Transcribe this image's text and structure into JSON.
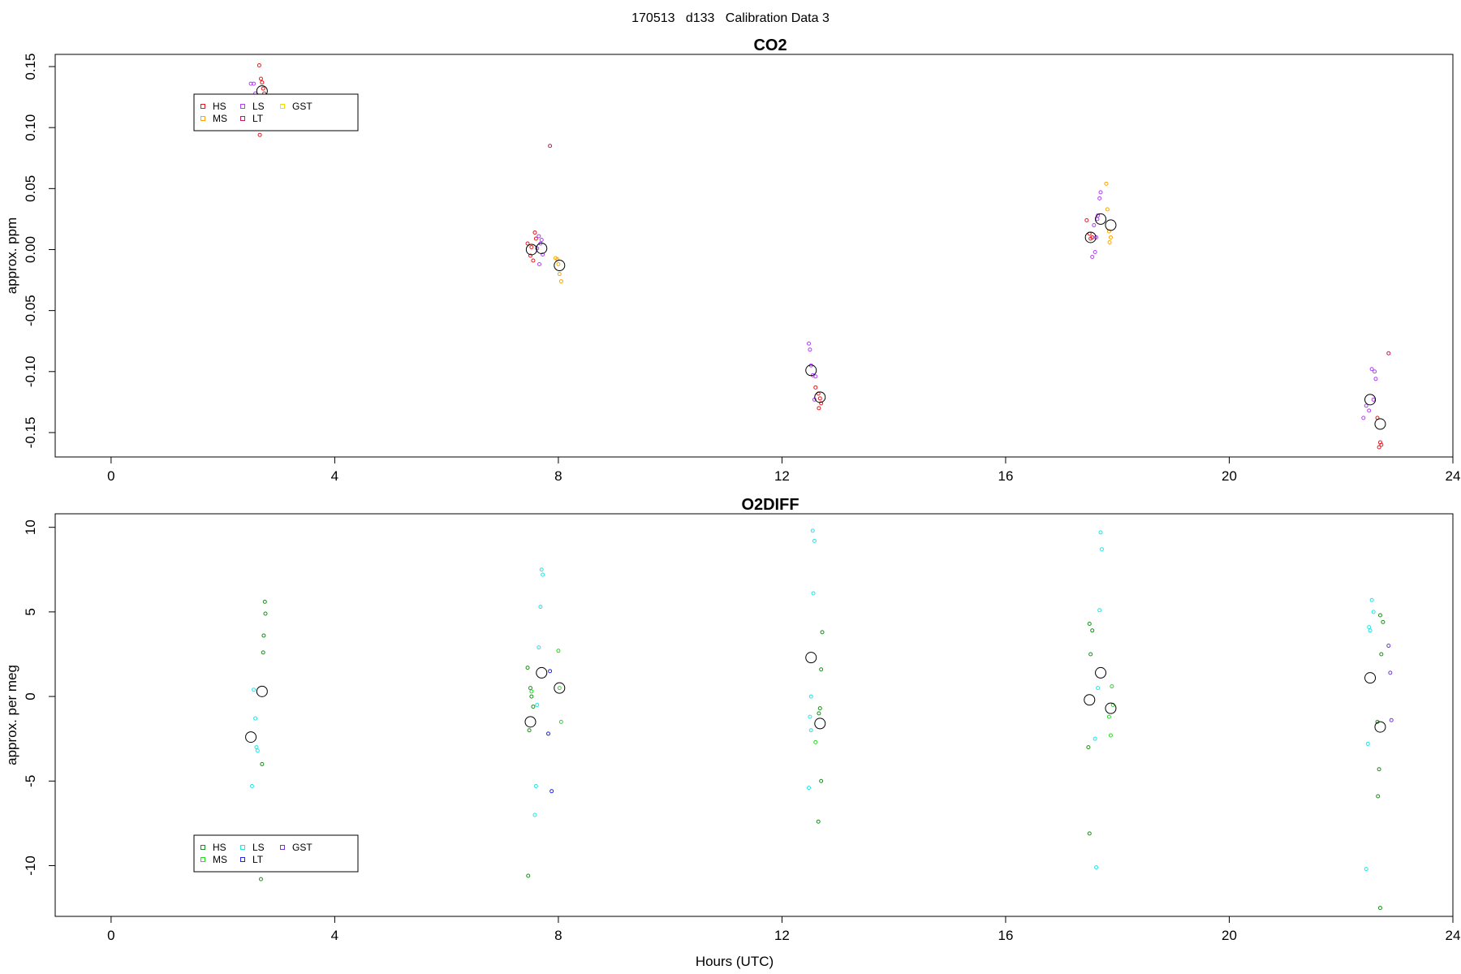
{
  "figure": {
    "title": "170513   d133   Calibration Data 3",
    "xlabel": "Hours (UTC)"
  },
  "chart_data": [
    {
      "type": "scatter",
      "title": "CO2",
      "xlabel": "",
      "ylabel": "approx. ppm",
      "xlim": [
        -1,
        24
      ],
      "ylim": [
        -0.17,
        0.16
      ],
      "xticks": [
        0,
        4,
        8,
        12,
        16,
        20,
        24
      ],
      "yticks": [
        -0.15,
        -0.1,
        -0.05,
        0.0,
        0.05,
        0.1,
        0.15
      ],
      "ytick_labels": [
        "-0.15",
        "-0.10",
        "-0.05",
        "0.00",
        "0.05",
        "0.10",
        "0.15"
      ],
      "grid": false,
      "legend": {
        "position": "top-left",
        "columns": [
          [
            "HS",
            "MS"
          ],
          [
            "LS",
            "LT"
          ],
          [
            "GST"
          ]
        ],
        "colors": {
          "HS": "#e41a1c",
          "MS": "#ffa500",
          "LS": "#b23cff",
          "LT": "#c2185b",
          "GST": "#f0e000"
        }
      },
      "series": [
        {
          "name": "HS",
          "color": "#e41a1c",
          "x": [
            2.65,
            2.68,
            2.7,
            2.72,
            2.74,
            2.7,
            2.66,
            7.45,
            7.5,
            7.55,
            7.58,
            7.6,
            7.52,
            12.6,
            12.65,
            12.68,
            12.7,
            12.66,
            17.45,
            17.5,
            17.55,
            17.52,
            22.65,
            22.7,
            22.72,
            22.68
          ],
          "y": [
            0.151,
            0.14,
            0.137,
            0.132,
            0.128,
            0.12,
            0.094,
            0.005,
            -0.005,
            -0.009,
            0.014,
            0.009,
            0.002,
            -0.113,
            -0.118,
            -0.122,
            -0.126,
            -0.13,
            0.024,
            0.013,
            0.01,
            0.009,
            -0.138,
            -0.158,
            -0.16,
            -0.162
          ]
        },
        {
          "name": "MS",
          "color": "#ffa500",
          "x": [
            7.95,
            7.98,
            8.0,
            8.02,
            8.05,
            17.8,
            17.82,
            17.85,
            17.88,
            17.86
          ],
          "y": [
            -0.007,
            -0.008,
            -0.012,
            -0.02,
            -0.026,
            0.054,
            0.033,
            0.015,
            0.01,
            0.006
          ]
        },
        {
          "name": "LS",
          "color": "#b23cff",
          "x": [
            2.5,
            2.55,
            2.58,
            7.65,
            7.68,
            7.7,
            7.72,
            7.66,
            7.62,
            12.48,
            12.5,
            12.52,
            12.55,
            12.6,
            12.58,
            17.55,
            17.6,
            17.62,
            17.65,
            17.68,
            17.7,
            17.64,
            17.58,
            22.4,
            22.45,
            22.5,
            22.55,
            22.6,
            22.62,
            22.58
          ],
          "y": [
            0.136,
            0.136,
            0.128,
            0.011,
            0.005,
            0.008,
            -0.004,
            -0.012,
            0.001,
            -0.077,
            -0.082,
            -0.095,
            -0.103,
            -0.104,
            -0.123,
            -0.006,
            -0.002,
            0.01,
            0.028,
            0.042,
            0.047,
            0.025,
            0.02,
            -0.138,
            -0.128,
            -0.132,
            -0.098,
            -0.1,
            -0.106,
            -0.123
          ]
        },
        {
          "name": "LT",
          "color": "#c2185b",
          "x": [
            7.85,
            22.85
          ],
          "y": [
            0.085,
            -0.085
          ]
        },
        {
          "name": "GST",
          "color": "#f0e000",
          "x": [],
          "y": []
        }
      ],
      "means": {
        "x": [
          2.7,
          7.52,
          7.7,
          8.02,
          12.52,
          12.68,
          17.52,
          17.7,
          17.88,
          22.52,
          22.7
        ],
        "y": [
          0.13,
          0.0,
          0.001,
          -0.013,
          -0.099,
          -0.121,
          0.01,
          0.025,
          0.02,
          -0.123,
          -0.143
        ]
      }
    },
    {
      "type": "scatter",
      "title": "O2DIFF",
      "xlabel": "Hours (UTC)",
      "ylabel": "approx. per meg",
      "xlim": [
        -1,
        24
      ],
      "ylim": [
        -13,
        10.8
      ],
      "xticks": [
        0,
        4,
        8,
        12,
        16,
        20,
        24
      ],
      "yticks": [
        -10,
        -5,
        0,
        5,
        10
      ],
      "ytick_labels": [
        "-10",
        "-5",
        "0",
        "5",
        "10"
      ],
      "grid": false,
      "legend": {
        "position": "bottom-left",
        "columns": [
          [
            "HS",
            "MS"
          ],
          [
            "LS",
            "LT"
          ],
          [
            "GST"
          ]
        ],
        "colors": {
          "HS": "#1a8f1a",
          "MS": "#22dd22",
          "LS": "#22e6e6",
          "LT": "#2222ee",
          "GST": "#6a3cc8"
        }
      },
      "series": [
        {
          "name": "HS",
          "color": "#1a8f1a",
          "x": [
            2.75,
            2.76,
            2.73,
            2.72,
            2.7,
            2.68,
            7.45,
            7.5,
            7.52,
            7.55,
            7.48,
            7.46,
            12.72,
            12.7,
            12.68,
            12.66,
            12.7,
            12.65,
            17.5,
            17.55,
            17.52,
            17.48,
            17.5,
            22.7,
            22.75,
            22.72,
            22.68,
            22.66,
            22.7,
            22.65
          ],
          "y": [
            5.6,
            4.9,
            3.6,
            2.6,
            -4.0,
            -10.8,
            1.7,
            0.5,
            0.0,
            -0.6,
            -2.0,
            -10.6,
            3.8,
            1.6,
            -0.7,
            -1.0,
            -5.0,
            -7.4,
            4.3,
            3.9,
            2.5,
            -3.0,
            -8.1,
            4.8,
            4.4,
            2.5,
            -4.3,
            -5.9,
            -12.5,
            -1.5
          ]
        },
        {
          "name": "MS",
          "color": "#22dd22",
          "x": [
            7.52,
            8.0,
            8.02,
            8.05,
            12.6,
            17.9,
            17.92,
            17.88,
            17.85
          ],
          "y": [
            0.3,
            2.7,
            0.5,
            -1.5,
            -2.7,
            0.6,
            -0.5,
            -2.3,
            -1.2
          ]
        },
        {
          "name": "LS",
          "color": "#22e6e6",
          "x": [
            2.55,
            2.58,
            2.6,
            2.62,
            2.52,
            7.7,
            7.72,
            7.68,
            7.65,
            7.62,
            7.6,
            7.58,
            12.55,
            12.58,
            12.56,
            12.52,
            12.5,
            12.48,
            12.52,
            17.7,
            17.72,
            17.68,
            17.65,
            17.6,
            17.62,
            22.55,
            22.58,
            22.5,
            22.52,
            22.48,
            22.45
          ],
          "y": [
            0.4,
            -1.3,
            -3.0,
            -3.2,
            -5.3,
            7.5,
            7.2,
            5.3,
            2.9,
            -0.5,
            -5.3,
            -7.0,
            9.8,
            9.2,
            6.1,
            0.0,
            -1.2,
            -5.4,
            -2.0,
            9.7,
            8.7,
            5.1,
            0.5,
            -2.5,
            -10.1,
            5.7,
            5.0,
            4.1,
            3.9,
            -2.8,
            -10.2
          ]
        },
        {
          "name": "LT",
          "color": "#2222ee",
          "x": [
            7.85,
            7.82,
            7.88
          ],
          "y": [
            1.5,
            -2.2,
            -5.6
          ]
        },
        {
          "name": "GST",
          "color": "#6a3cc8",
          "x": [
            22.85,
            22.88,
            22.9
          ],
          "y": [
            3.0,
            1.4,
            -1.4
          ]
        }
      ],
      "means": {
        "x": [
          2.5,
          2.7,
          7.5,
          7.7,
          8.02,
          12.52,
          12.68,
          17.5,
          17.7,
          17.88,
          22.52,
          22.7
        ],
        "y": [
          -2.4,
          0.3,
          -1.5,
          1.4,
          0.5,
          2.3,
          -1.6,
          -0.2,
          1.4,
          -0.7,
          1.1,
          -1.8
        ]
      }
    }
  ]
}
